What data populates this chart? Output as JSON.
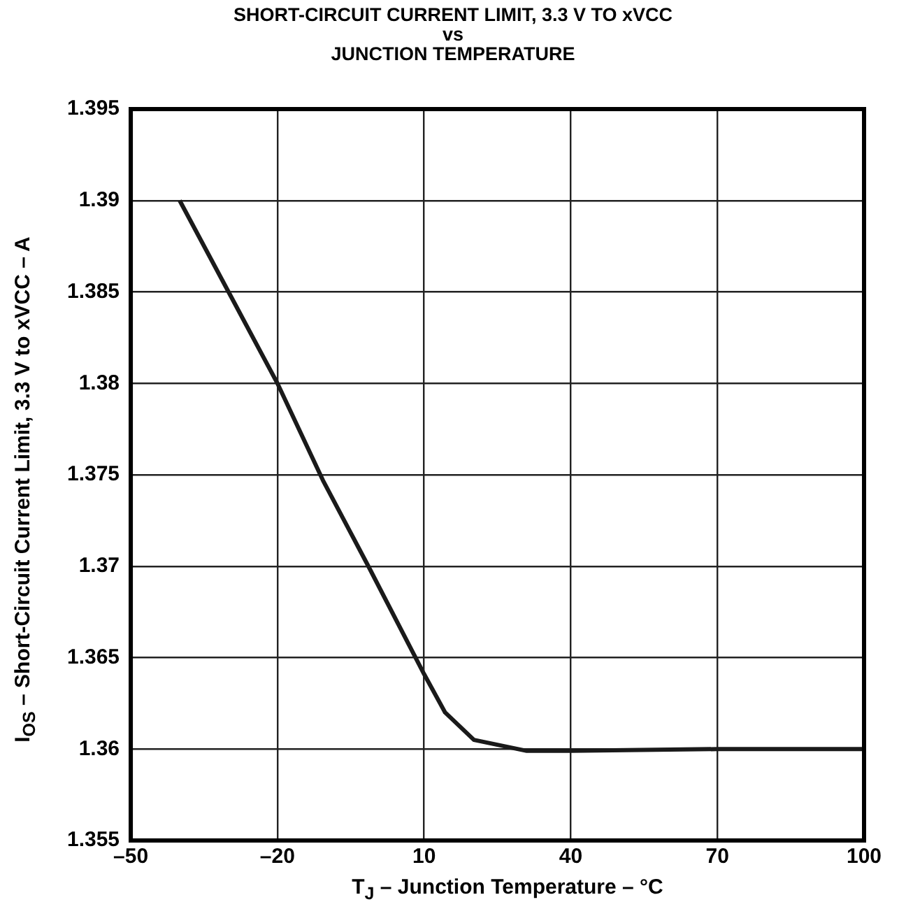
{
  "chart_data": {
    "type": "line",
    "title": "SHORT-CIRCUIT CURRENT LIMIT, 3.3 V TO xVCC\nvs\nJUNCTION TEMPERATURE",
    "xlabel": "T$_{J}$ – Junction Temperature – °C",
    "ylabel": "I$_{OS}$ – Short-Circuit Current Limit, 3.3 V to xVCC – A",
    "x": [
      -40,
      -30,
      -20,
      -10.7,
      -1.4,
      10,
      14.3,
      20.2,
      31,
      40,
      70,
      100
    ],
    "series": [
      {
        "color": "#1a1a1a",
        "values": [
          1.39,
          1.385,
          1.38,
          1.3747,
          1.37,
          1.3641,
          1.362,
          1.3605,
          1.3599,
          1.3599,
          1.36,
          1.36
        ]
      }
    ],
    "xlim": [
      -50,
      100
    ],
    "xticks": [
      {
        "value": -50,
        "label": "–50"
      },
      {
        "value": -20,
        "label": "–20"
      },
      10,
      40,
      70,
      100
    ],
    "ylim": [
      1.355,
      1.395
    ],
    "yticks": [
      1.355,
      1.36,
      1.365,
      1.37,
      1.375,
      1.38,
      1.385,
      1.39,
      1.395
    ],
    "grid": true,
    "legend": false,
    "marker": "none",
    "line_style": "solid"
  }
}
